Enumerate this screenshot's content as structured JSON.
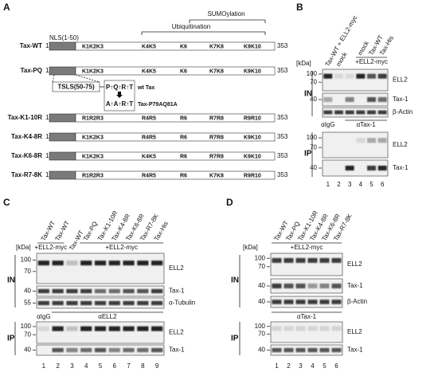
{
  "panel_a": {
    "label": "A",
    "sumoylation": "SUMOylation",
    "ubiquitination": "Ubiquitination",
    "nls": "NLS(1-50)",
    "tsls": "TSLS(50-75)",
    "motif_wt": "P↑Q↑R↑T",
    "motif_mut": "A↑A↑R↑T",
    "wt_name": "wt Tax",
    "mut_name": "Tax-P79AQ81A",
    "start": 1,
    "end": 353,
    "constructs": [
      {
        "name": "Tax-WT",
        "sites": [
          {
            "text": "K1K2K3",
            "color": "#000000"
          },
          {
            "text": "K4K5",
            "color": "#000000"
          },
          {
            "text": "K6",
            "color": "#000000"
          },
          {
            "text": "K7K8",
            "color": "#000000"
          },
          {
            "text": "K9K10",
            "color": "#000000"
          }
        ]
      },
      {
        "name": "Tax-PQ",
        "sites": [
          {
            "text": "K1K2K3",
            "color": "#000000"
          },
          {
            "text": "K4K5",
            "color": "#000000"
          },
          {
            "text": "K6",
            "color": "#000000"
          },
          {
            "text": "K7K8",
            "color": "#000000"
          },
          {
            "text": "K9K10",
            "color": "#000000"
          }
        ]
      },
      {
        "name": "Tax-K1-10R",
        "sites": [
          {
            "text": "R1R2R3",
            "color": "#e02020"
          },
          {
            "text": "R4R5",
            "color": "#e02020"
          },
          {
            "text": "R6",
            "color": "#e02020"
          },
          {
            "text": "R7R8",
            "color": "#e02020"
          },
          {
            "text": "R9R10",
            "color": "#e02020"
          }
        ]
      },
      {
        "name": "Tax-K4-8R",
        "sites": [
          {
            "text": "K1K2K3",
            "color": "#000000"
          },
          {
            "text": "R4R5",
            "color": "#e02020"
          },
          {
            "text": "R6",
            "color": "#e02020"
          },
          {
            "text": "R7R8",
            "color": "#e02020"
          },
          {
            "text": "K9K10",
            "color": "#000000"
          }
        ]
      },
      {
        "name": "Tax-K6-8R",
        "sites": [
          {
            "text": "K1K2K3",
            "color": "#000000"
          },
          {
            "text": "K4K5",
            "color": "#000000"
          },
          {
            "text": "R6",
            "color": "#e02020"
          },
          {
            "text": "R7R8",
            "color": "#e02020"
          },
          {
            "text": "K9K10",
            "color": "#000000"
          }
        ]
      },
      {
        "name": "Tax-R7-8K",
        "sites": [
          {
            "text": "R1R2R3",
            "color": "#e02020"
          },
          {
            "text": "R4R5",
            "color": "#e02020"
          },
          {
            "text": "R6",
            "color": "#e02020"
          },
          {
            "text": "K7K8",
            "color": "#1a9a3a"
          },
          {
            "text": "R9R10",
            "color": "#e02020"
          }
        ]
      }
    ]
  },
  "panel_b": {
    "label": "B",
    "kda": "[kDa]",
    "lanes": [
      "Tax-WT + ELL2-myc",
      "mock",
      null,
      "mock",
      "Tax-WT",
      "Tax-His"
    ],
    "groups": [
      "+ELL2-myc"
    ],
    "sections": [
      {
        "name": "IN",
        "blots": [
          {
            "target": "ELL2",
            "markers": [
              100,
              70
            ]
          },
          {
            "target": "Tax-1",
            "markers": [
              40
            ]
          },
          {
            "target": "β-Actin",
            "markers": []
          }
        ]
      },
      {
        "name": "IP",
        "antibodies": [
          "αIgG",
          "αTax-1"
        ],
        "blots": [
          {
            "target": "ELL2",
            "markers": [
              100,
              70
            ]
          },
          {
            "target": "Tax-1",
            "markers": [
              40
            ]
          }
        ]
      }
    ],
    "lane_numbers": [
      1,
      2,
      3,
      4,
      5,
      6
    ]
  },
  "panel_c": {
    "label": "C",
    "kda": "[kDa]",
    "lanes": [
      "Tax-WT",
      "Tax-WT",
      "Tax-WT",
      "Tax-PQ",
      "Tax-K1-10R",
      "Tax-K4-8R",
      "Tax-K6-8R",
      "Tax-R7-8K",
      "Tax-His"
    ],
    "groups": [
      "+ELL2-myc",
      "+ELL2-myc"
    ],
    "sections": [
      {
        "name": "IN",
        "blots": [
          {
            "target": "ELL2",
            "markers": [
              100,
              70
            ]
          },
          {
            "target": "Tax-1",
            "markers": [
              40
            ]
          },
          {
            "target": "α-Tubulin",
            "markers": [
              55
            ]
          }
        ]
      },
      {
        "name": "IP",
        "antibodies": [
          "αIgG",
          "αELL2"
        ],
        "blots": [
          {
            "target": "ELL2",
            "markers": [
              100,
              70
            ]
          },
          {
            "target": "Tax-1",
            "markers": [
              40
            ]
          }
        ]
      }
    ],
    "lane_numbers": [
      1,
      2,
      3,
      4,
      5,
      6,
      7,
      8,
      9
    ]
  },
  "panel_d": {
    "label": "D",
    "kda": "[kDa]",
    "lanes": [
      "Tax-WT",
      "Tax-PQ",
      "Tax-K1-10R",
      "Tax-K4-8R",
      "Tax-K6-8R",
      "Tax-R7-8K"
    ],
    "groups": [
      "+ELL2-myc"
    ],
    "sections": [
      {
        "name": "IN",
        "blots": [
          {
            "target": "ELL2",
            "markers": [
              100,
              70
            ]
          },
          {
            "target": "Tax-1",
            "markers": [
              40
            ]
          },
          {
            "target": "β-Actin",
            "markers": [
              40
            ]
          }
        ]
      },
      {
        "name": "IP",
        "antibodies": [
          "αTax-1"
        ],
        "blots": [
          {
            "target": "ELL2",
            "markers": [
              100,
              70
            ]
          },
          {
            "target": "Tax-1",
            "markers": [
              40
            ]
          }
        ]
      }
    ],
    "lane_numbers": [
      1,
      2,
      3,
      4,
      5,
      6
    ]
  }
}
